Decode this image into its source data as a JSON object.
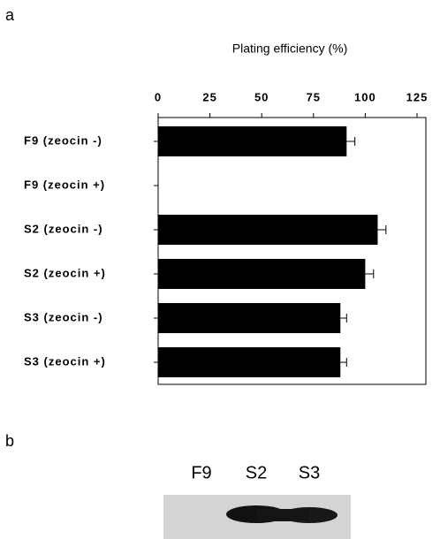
{
  "panel_a_label": "a",
  "chart_data": {
    "type": "barh",
    "title": "Plating efficiency (%)",
    "categories": [
      "F9 (zeocin -)",
      "F9 (zeocin +)",
      "S2 (zeocin -)",
      "S2 (zeocin +)",
      "S3 (zeocin -)",
      "S3 (zeocin +)"
    ],
    "values": [
      91,
      0,
      106,
      100,
      88,
      88
    ],
    "errors": [
      4,
      0,
      4,
      4,
      3,
      3
    ],
    "color": "#000000",
    "xlim": [
      0,
      125
    ],
    "xticks": [
      0,
      25,
      50,
      75,
      100,
      125
    ]
  },
  "panel_b": {
    "label": "b",
    "lanes": [
      "F9",
      "S2",
      "S3"
    ]
  }
}
